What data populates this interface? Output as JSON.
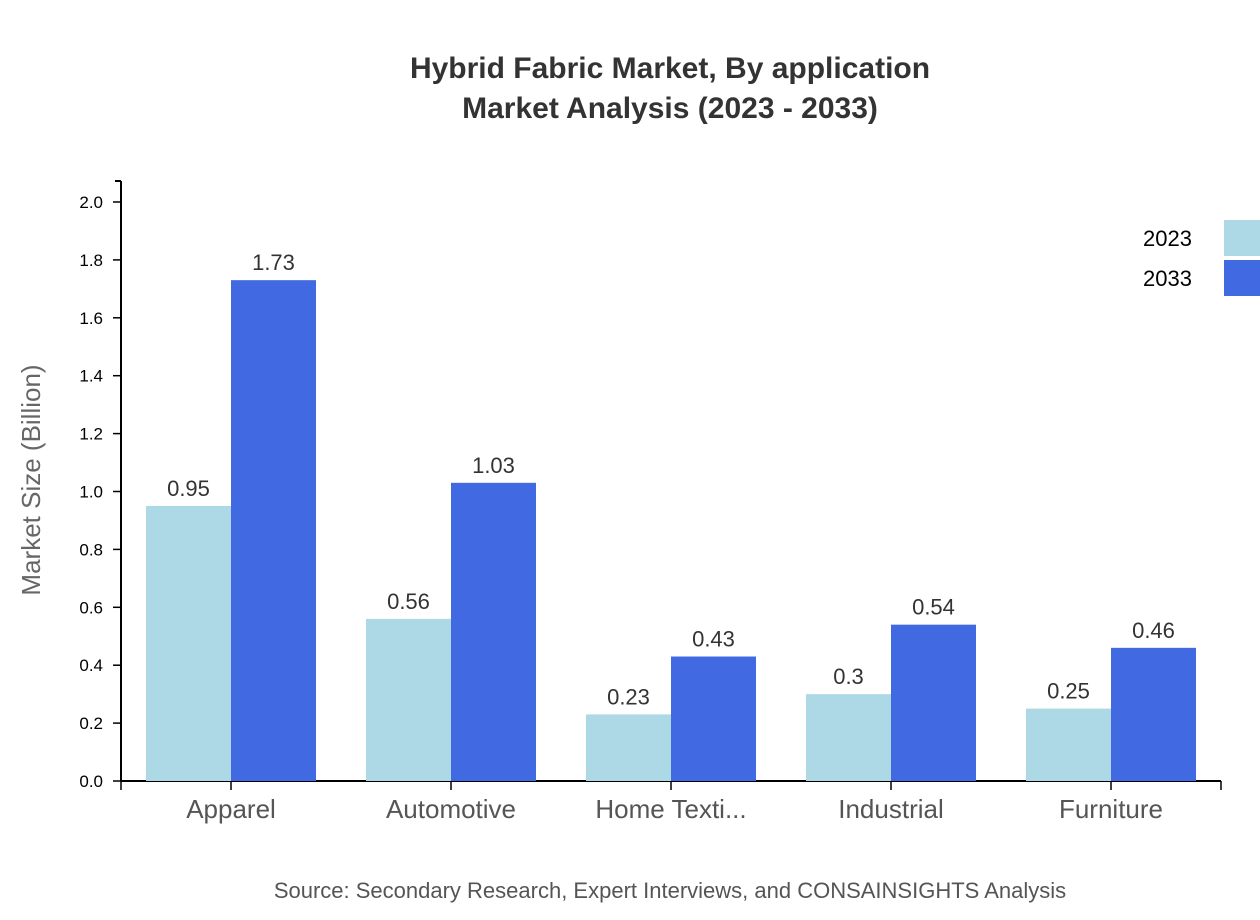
{
  "chart_data": {
    "type": "bar",
    "title": "Hybrid Fabric Market, By application",
    "subtitle": "Market Analysis (2023 - 2033)",
    "xlabel": "",
    "ylabel": "Market Size (Billion)",
    "ylim": [
      0,
      2.0
    ],
    "yticks": [
      "0.0",
      "0.2",
      "0.4",
      "0.6",
      "0.8",
      "1.0",
      "1.2",
      "1.4",
      "1.6",
      "1.8",
      "2.0"
    ],
    "grid": false,
    "legend_position": "top-right",
    "categories": [
      "Apparel",
      "Automotive",
      "Home Texti...",
      "Industrial",
      "Furniture"
    ],
    "series": [
      {
        "name": "2023",
        "color": "#add8e6",
        "values": [
          0.95,
          0.56,
          0.23,
          0.3,
          0.25
        ],
        "labels": [
          "0.95",
          "0.56",
          "0.23",
          "0.3",
          "0.25"
        ]
      },
      {
        "name": "2033",
        "color": "#4169e1",
        "values": [
          1.73,
          1.03,
          0.43,
          0.54,
          0.46
        ],
        "labels": [
          "1.73",
          "1.03",
          "0.43",
          "0.54",
          "0.46"
        ]
      }
    ],
    "source": "Source: Secondary Research, Expert Interviews, and CONSAINSIGHTS Analysis"
  }
}
